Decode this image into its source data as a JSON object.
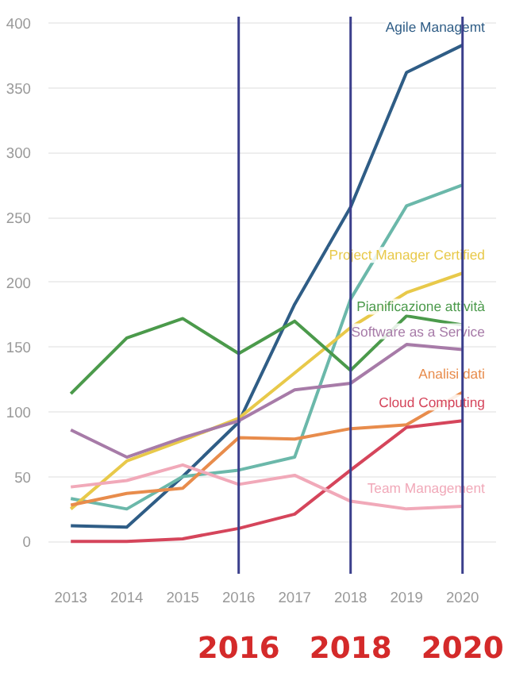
{
  "chart_data": {
    "type": "line",
    "x": [
      2013,
      2014,
      2015,
      2016,
      2017,
      2018,
      2019,
      2020
    ],
    "series": [
      {
        "name": "Agile Managemt",
        "color": "#2f5d86",
        "values": [
          12,
          11,
          50,
          92,
          183,
          258,
          362,
          383
        ]
      },
      {
        "color": "#6bb8aa",
        "values": [
          33,
          25,
          50,
          55,
          65,
          187,
          259,
          275
        ]
      },
      {
        "name": "Project Manager Certified",
        "color": "#e8c94a",
        "values": [
          25,
          62,
          78,
          95,
          130,
          165,
          192,
          207
        ]
      },
      {
        "name": "Pianificazione attività",
        "color": "#4b9a4b",
        "values": [
          114,
          157,
          172,
          145,
          170,
          132,
          174,
          167
        ]
      },
      {
        "name": "Software as a Service",
        "color": "#a77ba8",
        "values": [
          86,
          65,
          80,
          93,
          117,
          122,
          152,
          148
        ]
      },
      {
        "name": "Analisi dati",
        "color": "#e88c4c",
        "values": [
          28,
          37,
          41,
          80,
          79,
          87,
          90,
          115
        ]
      },
      {
        "name": "Cloud Computing",
        "color": "#d5455b",
        "values": [
          0,
          0,
          2,
          10,
          21,
          55,
          88,
          93
        ]
      },
      {
        "name": "Team Management",
        "color": "#f1a9b9",
        "values": [
          42,
          47,
          59,
          44,
          51,
          31,
          25,
          27
        ]
      }
    ],
    "xlim": [
      2012.6,
      2020.6
    ],
    "ylim": [
      -25,
      405
    ],
    "xticks": [
      2013,
      2014,
      2015,
      2016,
      2017,
      2018,
      2019,
      2020
    ],
    "yticks": [
      0,
      50,
      100,
      150,
      200,
      250,
      300,
      350,
      400
    ],
    "grid": "y",
    "marker": "none",
    "line_style": "solid",
    "ref_lines": [
      {
        "axis": "x",
        "value": 2016,
        "label": "2016",
        "color": "#3b3f8c"
      },
      {
        "axis": "x",
        "value": 2018,
        "label": "2018",
        "color": "#3b3f8c"
      },
      {
        "axis": "x",
        "value": 2020,
        "label": "2020",
        "color": "#3b3f8c"
      }
    ]
  }
}
